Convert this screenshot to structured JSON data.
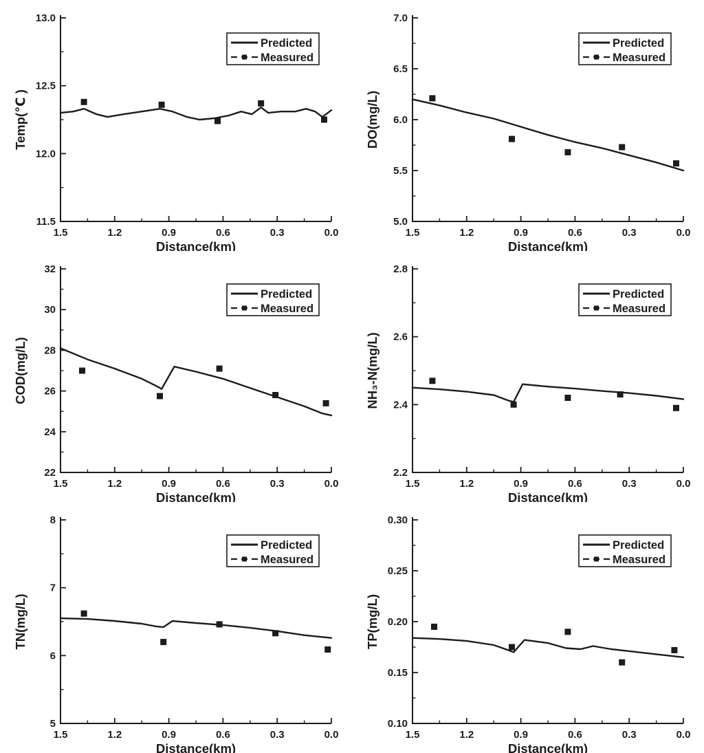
{
  "figure": {
    "background": "#ffffff",
    "ink_color": "#1c1c1c",
    "description": "Comparison of predicted and measured water quality parameters along distance",
    "legend_entries": [
      "Predicted",
      "Measured"
    ]
  },
  "chart_data": [
    {
      "type": "line",
      "id": "temp",
      "title": "",
      "ylabel": "Temp(℃ )",
      "xlabel": "Distance(km)",
      "xlim": [
        1.5,
        0.0
      ],
      "ylim": [
        11.5,
        13.0
      ],
      "xticks": [
        1.5,
        1.2,
        0.9,
        0.6,
        0.3,
        0.0
      ],
      "xtick_labels": [
        "1.5",
        "1.2",
        "0.9",
        "0.6",
        "0.3",
        "0.0"
      ],
      "xminor": [
        1.35,
        1.05,
        0.75,
        0.45,
        0.15
      ],
      "yticks": [
        11.5,
        12.0,
        12.5,
        13.0
      ],
      "ytick_labels": [
        "11.5",
        "12.0",
        "12.5",
        "13.0"
      ],
      "yminor": [
        11.75,
        12.25,
        12.75
      ],
      "grid": false,
      "legend_position": "top-right",
      "legend": [
        "Predicted",
        "Measured"
      ],
      "series": [
        {
          "name": "Predicted",
          "mode": "line",
          "x": [
            1.5,
            1.43,
            1.37,
            1.3,
            1.24,
            1.15,
            1.05,
            0.95,
            0.88,
            0.8,
            0.73,
            0.65,
            0.57,
            0.5,
            0.44,
            0.39,
            0.35,
            0.28,
            0.2,
            0.14,
            0.09,
            0.05,
            0.0
          ],
          "y": [
            12.3,
            12.31,
            12.33,
            12.29,
            12.27,
            12.29,
            12.31,
            12.33,
            12.31,
            12.27,
            12.25,
            12.26,
            12.28,
            12.31,
            12.29,
            12.34,
            12.3,
            12.31,
            12.31,
            12.33,
            12.31,
            12.27,
            12.32
          ]
        },
        {
          "name": "Measured",
          "mode": "scatter",
          "x": [
            1.37,
            0.94,
            0.63,
            0.39,
            0.04
          ],
          "y": [
            12.38,
            12.36,
            12.24,
            12.37,
            12.25
          ]
        }
      ]
    },
    {
      "type": "line",
      "id": "do",
      "title": "",
      "ylabel": "DO(mg/L)",
      "xlabel": "Distance(km)",
      "xlim": [
        1.5,
        0.0
      ],
      "ylim": [
        5.0,
        7.0
      ],
      "xticks": [
        1.5,
        1.2,
        0.9,
        0.6,
        0.3,
        0.0
      ],
      "xtick_labels": [
        "1.5",
        "1.2",
        "0.9",
        "0.6",
        "0.3",
        "0.0"
      ],
      "xminor": [
        1.35,
        1.05,
        0.75,
        0.45,
        0.15
      ],
      "yticks": [
        5.0,
        5.5,
        6.0,
        6.5,
        7.0
      ],
      "ytick_labels": [
        "5.0",
        "5.5",
        "6.0",
        "6.5",
        "7.0"
      ],
      "yminor": [
        5.25,
        5.75,
        6.25,
        6.75
      ],
      "grid": false,
      "legend_position": "top-right",
      "legend": [
        "Predicted",
        "Measured"
      ],
      "series": [
        {
          "name": "Predicted",
          "mode": "line",
          "x": [
            1.5,
            1.35,
            1.2,
            1.05,
            0.9,
            0.75,
            0.6,
            0.45,
            0.3,
            0.15,
            0.0
          ],
          "y": [
            6.2,
            6.14,
            6.07,
            6.01,
            5.93,
            5.85,
            5.78,
            5.72,
            5.65,
            5.58,
            5.5
          ]
        },
        {
          "name": "Measured",
          "mode": "scatter",
          "x": [
            1.39,
            0.95,
            0.64,
            0.34,
            0.04
          ],
          "y": [
            6.21,
            5.81,
            5.68,
            5.73,
            5.57
          ]
        }
      ]
    },
    {
      "type": "line",
      "id": "cod",
      "title": "",
      "ylabel": "COD(mg/L)",
      "xlabel": "Distance(km)",
      "xlim": [
        1.5,
        0.0
      ],
      "ylim": [
        22,
        32
      ],
      "xticks": [
        1.5,
        1.2,
        0.9,
        0.6,
        0.3,
        0.0
      ],
      "xtick_labels": [
        "1.5",
        "1.2",
        "0.9",
        "0.6",
        "0.3",
        "0.0"
      ],
      "xminor": [
        1.35,
        1.05,
        0.75,
        0.45,
        0.15
      ],
      "yticks": [
        22,
        24,
        26,
        28,
        30,
        32
      ],
      "ytick_labels": [
        "22",
        "24",
        "26",
        "28",
        "30",
        "32"
      ],
      "yminor": [
        23,
        25,
        27,
        29,
        31
      ],
      "grid": false,
      "legend_position": "top-right",
      "legend": [
        "Predicted",
        "Measured"
      ],
      "series": [
        {
          "name": "Predicted",
          "mode": "line",
          "x": [
            1.5,
            1.35,
            1.2,
            1.05,
            0.97,
            0.94,
            0.87,
            0.75,
            0.6,
            0.45,
            0.3,
            0.15,
            0.05,
            0.0
          ],
          "y": [
            28.1,
            27.55,
            27.1,
            26.6,
            26.25,
            26.1,
            27.2,
            26.95,
            26.6,
            26.15,
            25.7,
            25.25,
            24.9,
            24.8
          ]
        },
        {
          "name": "Measured",
          "mode": "scatter",
          "x": [
            1.38,
            0.95,
            0.62,
            0.31,
            0.03
          ],
          "y": [
            27.0,
            25.75,
            27.1,
            25.8,
            25.4
          ]
        }
      ]
    },
    {
      "type": "line",
      "id": "nh3n",
      "title": "",
      "ylabel": "NH₃-N(mg/L)",
      "xlabel": "Distance(km)",
      "xlim": [
        1.5,
        0.0
      ],
      "ylim": [
        2.2,
        2.8
      ],
      "xticks": [
        1.5,
        1.2,
        0.9,
        0.6,
        0.3,
        0.0
      ],
      "xtick_labels": [
        "1.5",
        "1.2",
        "0.9",
        "0.6",
        "0.3",
        "0.0"
      ],
      "xminor": [
        1.35,
        1.05,
        0.75,
        0.45,
        0.15
      ],
      "yticks": [
        2.2,
        2.4,
        2.6,
        2.8
      ],
      "ytick_labels": [
        "2.2",
        "2.4",
        "2.6",
        "2.8"
      ],
      "yminor": [
        2.3,
        2.5,
        2.7
      ],
      "grid": false,
      "legend_position": "top-right",
      "legend": [
        "Predicted",
        "Measured"
      ],
      "series": [
        {
          "name": "Predicted",
          "mode": "line",
          "x": [
            1.5,
            1.35,
            1.2,
            1.05,
            0.97,
            0.94,
            0.89,
            0.75,
            0.6,
            0.45,
            0.3,
            0.15,
            0.0
          ],
          "y": [
            2.45,
            2.445,
            2.438,
            2.428,
            2.412,
            2.408,
            2.46,
            2.453,
            2.447,
            2.44,
            2.434,
            2.426,
            2.416
          ]
        },
        {
          "name": "Measured",
          "mode": "scatter",
          "x": [
            1.39,
            0.94,
            0.64,
            0.35,
            0.04
          ],
          "y": [
            2.47,
            2.4,
            2.42,
            2.43,
            2.39
          ]
        }
      ]
    },
    {
      "type": "line",
      "id": "tn",
      "title": "",
      "ylabel": "TN(mg/L)",
      "xlabel": "Distance(km)",
      "xlim": [
        1.5,
        0.0
      ],
      "ylim": [
        5,
        8
      ],
      "xticks": [
        1.5,
        1.2,
        0.9,
        0.6,
        0.3,
        0.0
      ],
      "xtick_labels": [
        "1.5",
        "1.2",
        "0.9",
        "0.6",
        "0.3",
        "0.0"
      ],
      "xminor": [
        1.35,
        1.05,
        0.75,
        0.45,
        0.15
      ],
      "yticks": [
        5,
        6,
        7,
        8
      ],
      "ytick_labels": [
        "5",
        "6",
        "7",
        "8"
      ],
      "yminor": [
        5.5,
        6.5,
        7.5
      ],
      "grid": false,
      "legend_position": "top-right",
      "legend": [
        "Predicted",
        "Measured"
      ],
      "series": [
        {
          "name": "Predicted",
          "mode": "line",
          "x": [
            1.5,
            1.35,
            1.2,
            1.05,
            0.97,
            0.93,
            0.88,
            0.75,
            0.6,
            0.45,
            0.3,
            0.15,
            0.0
          ],
          "y": [
            6.55,
            6.54,
            6.51,
            6.47,
            6.43,
            6.42,
            6.51,
            6.48,
            6.45,
            6.41,
            6.36,
            6.3,
            6.26
          ]
        },
        {
          "name": "Measured",
          "mode": "scatter",
          "x": [
            1.37,
            0.93,
            0.62,
            0.31,
            0.02
          ],
          "y": [
            6.62,
            6.2,
            6.46,
            6.33,
            6.09
          ]
        }
      ]
    },
    {
      "type": "line",
      "id": "tp",
      "title": "",
      "ylabel": "TP(mg/L)",
      "xlabel": "Distance(km)",
      "xlim": [
        1.5,
        0.0
      ],
      "ylim": [
        0.1,
        0.3
      ],
      "xticks": [
        1.5,
        1.2,
        0.9,
        0.6,
        0.3,
        0.0
      ],
      "xtick_labels": [
        "1.5",
        "1.2",
        "0.9",
        "0.6",
        "0.3",
        "0.0"
      ],
      "xminor": [
        1.35,
        1.05,
        0.75,
        0.45,
        0.15
      ],
      "yticks": [
        0.1,
        0.15,
        0.2,
        0.25,
        0.3
      ],
      "ytick_labels": [
        "0.10",
        "0.15",
        "0.20",
        "0.25",
        "0.30"
      ],
      "yminor": [
        0.125,
        0.175,
        0.225,
        0.275
      ],
      "grid": false,
      "legend_position": "top-right",
      "legend": [
        "Predicted",
        "Measured"
      ],
      "series": [
        {
          "name": "Predicted",
          "mode": "line",
          "x": [
            1.5,
            1.35,
            1.2,
            1.05,
            0.97,
            0.94,
            0.88,
            0.75,
            0.65,
            0.57,
            0.5,
            0.4,
            0.3,
            0.15,
            0.0
          ],
          "y": [
            0.184,
            0.183,
            0.181,
            0.177,
            0.172,
            0.17,
            0.182,
            0.179,
            0.174,
            0.173,
            0.176,
            0.173,
            0.171,
            0.168,
            0.165
          ]
        },
        {
          "name": "Measured",
          "mode": "scatter",
          "x": [
            1.38,
            0.95,
            0.64,
            0.34,
            0.05
          ],
          "y": [
            0.195,
            0.175,
            0.19,
            0.16,
            0.172
          ]
        }
      ]
    }
  ]
}
